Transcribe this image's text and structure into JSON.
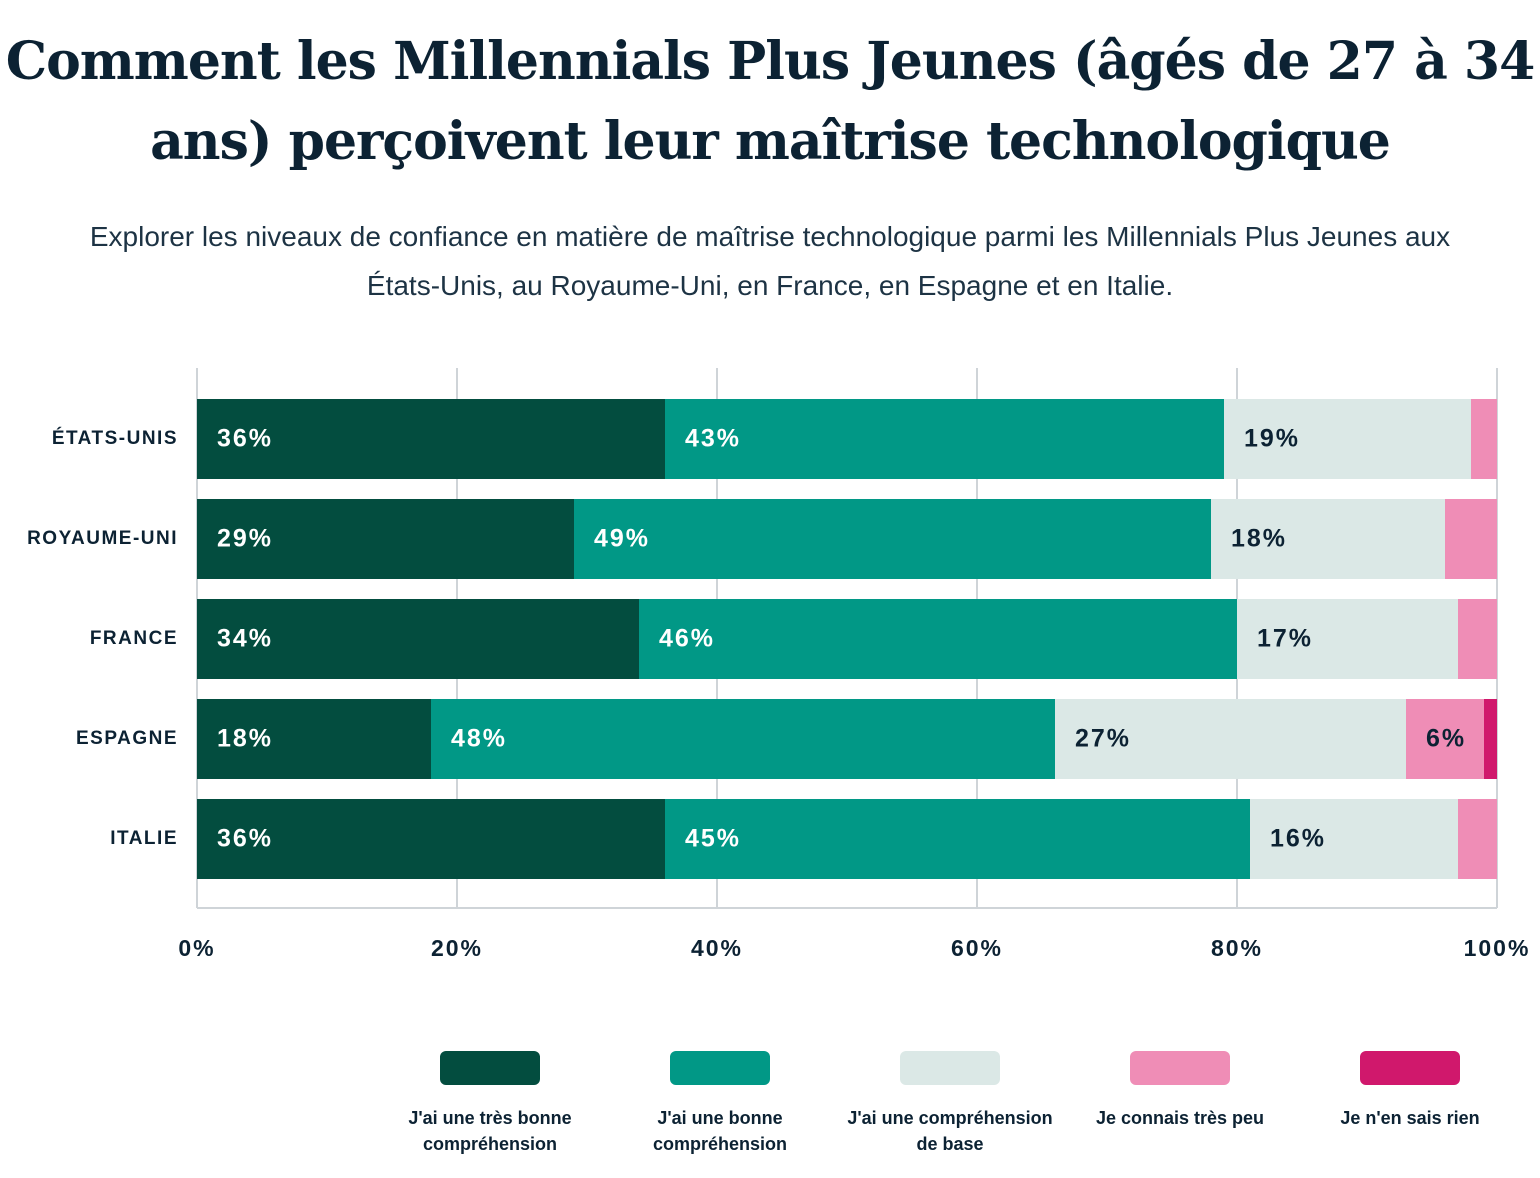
{
  "chart_data": {
    "type": "stacked-bar-horizontal",
    "title": "Comment les Millennials Plus Jeunes (âgés de 27 à 34 ans) perçoivent leur maîtrise technologique",
    "subtitle": "Explorer les niveaux de confiance en matière de maîtrise technologique parmi les Millennials Plus Jeunes aux États-Unis, au Royaume-Uni, en France, en Espagne et en Italie.",
    "categories": [
      "ÉTATS-UNIS",
      "ROYAUME-UNI",
      "FRANCE",
      "ESPAGNE",
      "ITALIE"
    ],
    "series": [
      {
        "name": "J'ai une très bonne compréhension",
        "color": "#034d3f",
        "values": [
          36,
          29,
          34,
          18,
          36
        ],
        "value_labels": [
          "36%",
          "29%",
          "34%",
          "18%",
          "36%"
        ]
      },
      {
        "name": "J'ai une bonne compréhension",
        "color": "#019886",
        "values": [
          43,
          49,
          46,
          48,
          45
        ],
        "value_labels": [
          "43%",
          "49%",
          "46%",
          "48%",
          "45%"
        ]
      },
      {
        "name": "J'ai une compréhension de base",
        "color": "#dbe8e6",
        "values": [
          19,
          18,
          17,
          27,
          16
        ],
        "value_labels": [
          "19%",
          "18%",
          "17%",
          "27%",
          "16%"
        ]
      },
      {
        "name": "Je connais très peu",
        "color": "#ef8db6",
        "values": [
          2,
          4,
          3,
          6,
          3
        ],
        "value_labels": [
          null,
          null,
          null,
          "6%",
          null
        ]
      },
      {
        "name": "Je n'en sais rien",
        "color": "#d0186c",
        "values": [
          0,
          0,
          0,
          1,
          0
        ]
      }
    ],
    "xlim": [
      0,
      100
    ],
    "xticks": [
      {
        "value": 0,
        "label": "0%"
      },
      {
        "value": 20,
        "label": "20%"
      },
      {
        "value": 40,
        "label": "40%"
      },
      {
        "value": 60,
        "label": "60%"
      },
      {
        "value": 80,
        "label": "80%"
      },
      {
        "value": 100,
        "label": "100%"
      }
    ],
    "grid": true
  }
}
